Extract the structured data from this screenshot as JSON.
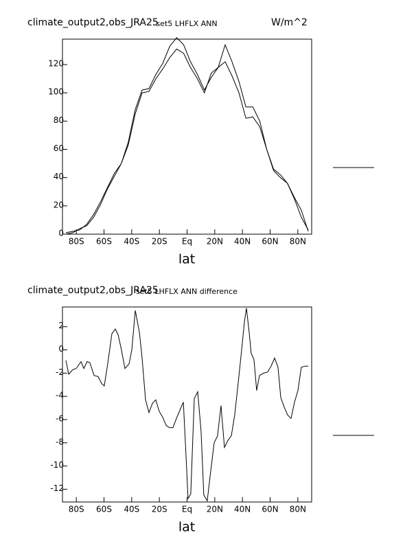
{
  "chart_data": [
    {
      "type": "line",
      "title": "climate_output2,obs_JRA25",
      "subtitle": "set5 LHFLX ANN",
      "units": "W/m^2",
      "xlabel": "lat",
      "x": [
        -87.5,
        -82.5,
        -77.5,
        -72.5,
        -67.5,
        -62.5,
        -57.5,
        -52.5,
        -47.5,
        -42.5,
        -37.5,
        -32.5,
        -27.5,
        -22.5,
        -17.5,
        -12.5,
        -7.5,
        -2.5,
        2.5,
        7.5,
        12.5,
        17.5,
        22.5,
        27.5,
        32.5,
        37.5,
        42.5,
        47.5,
        52.5,
        57.5,
        62.5,
        67.5,
        72.5,
        77.5,
        82.5,
        87.5
      ],
      "series": [
        {
          "color": "#000000",
          "values": [
            1,
            2,
            3,
            7,
            14,
            23,
            33,
            43,
            50,
            65,
            88,
            102,
            103,
            113,
            121,
            133,
            139,
            134,
            122,
            113,
            102,
            111,
            118,
            134,
            122,
            108,
            90,
            90,
            80,
            60,
            46,
            42,
            36,
            25,
            12,
            3
          ]
        },
        {
          "color": "#000000",
          "values": [
            0,
            1,
            4,
            6,
            12,
            21,
            32,
            41,
            50,
            63,
            85,
            100,
            101,
            110,
            117,
            125,
            131,
            128,
            118,
            110,
            100,
            114,
            118,
            122,
            112,
            100,
            82,
            83,
            76,
            60,
            45,
            40,
            36,
            26,
            17,
            2
          ]
        }
      ],
      "xlim": [
        -90,
        90
      ],
      "xticks": [
        {
          "value": -80,
          "label": "80S"
        },
        {
          "value": -60,
          "label": "60S"
        },
        {
          "value": -40,
          "label": "40S"
        },
        {
          "value": -20,
          "label": "20S"
        },
        {
          "value": 0,
          "label": "Eq"
        },
        {
          "value": 20,
          "label": "20N"
        },
        {
          "value": 40,
          "label": "40N"
        },
        {
          "value": 60,
          "label": "60N"
        },
        {
          "value": 80,
          "label": "80N"
        }
      ],
      "ylim": [
        0,
        138
      ],
      "yticks": [
        0,
        20,
        40,
        60,
        80,
        100,
        120
      ]
    },
    {
      "type": "line",
      "title": "climate_output2,obs_JRA25",
      "subtitle": "set5 LHFLX ANN difference",
      "xlabel": "lat",
      "x": [
        -87.5,
        -85.5,
        -82.6,
        -80.1,
        -76.6,
        -74.6,
        -72.2,
        -70.2,
        -67.2,
        -64.2,
        -61.7,
        -59.8,
        -57.3,
        -54.3,
        -51.8,
        -49.8,
        -47.4,
        -44.9,
        -41.9,
        -39.9,
        -37.4,
        -34.4,
        -32.5,
        -30,
        -27.5,
        -25,
        -22.6,
        -20.1,
        -17.6,
        -15.1,
        -12.7,
        -10.2,
        -7.7,
        -5.2,
        -2.7,
        -0.8,
        0.7,
        2.7,
        5.2,
        7.7,
        10.1,
        12.1,
        14.6,
        17.1,
        19.6,
        22,
        24.5,
        27,
        29.5,
        32,
        34.4,
        36.9,
        39.4,
        41.4,
        42.9,
        44.9,
        46.3,
        48.3,
        50.3,
        52.3,
        55.3,
        58.2,
        60.7,
        63.2,
        65.7,
        67.7,
        70.1,
        72.6,
        75.1,
        77.6,
        80.1,
        82.5,
        85,
        87.5
      ],
      "series": [
        {
          "color": "#000000",
          "values": [
            -0.9,
            -2.1,
            -1.7,
            -1.6,
            -1.0,
            -1.6,
            -1.0,
            -1.1,
            -2.2,
            -2.3,
            -2.9,
            -3.1,
            -1.2,
            1.4,
            1.8,
            1.3,
            0,
            -1.6,
            -1.2,
            0,
            3.4,
            1.5,
            -0.7,
            -4.3,
            -5.4,
            -4.6,
            -4.3,
            -5.3,
            -5.8,
            -6.5,
            -6.7,
            -6.7,
            -5.9,
            -5.2,
            -4.5,
            -9,
            -12.8,
            -12.4,
            -4.2,
            -3.6,
            -7.0,
            -12.5,
            -13.0,
            -10.4,
            -8,
            -7.4,
            -4.8,
            -8.4,
            -7.8,
            -7.4,
            -5.6,
            -2.9,
            0,
            2.4,
            3.6,
            1.5,
            -0.3,
            -0.8,
            -3.5,
            -2.2,
            -2.0,
            -1.9,
            -1.4,
            -0.7,
            -1.5,
            -4.1,
            -4.9,
            -5.6,
            -5.9,
            -4.5,
            -3.5,
            -1.5,
            -1.4,
            -1.4
          ]
        }
      ],
      "xlim": [
        -90,
        90
      ],
      "xticks": [
        {
          "value": -80,
          "label": "80S"
        },
        {
          "value": -60,
          "label": "60S"
        },
        {
          "value": -40,
          "label": "40S"
        },
        {
          "value": -20,
          "label": "20S"
        },
        {
          "value": 0,
          "label": "Eq"
        },
        {
          "value": 20,
          "label": "20N"
        },
        {
          "value": 40,
          "label": "40N"
        },
        {
          "value": 60,
          "label": "60N"
        },
        {
          "value": 80,
          "label": "80N"
        }
      ],
      "ylim": [
        -13.1,
        3.7
      ],
      "yticks": [
        2,
        0,
        -2,
        -4,
        -6,
        -8,
        -10,
        -12
      ]
    }
  ]
}
